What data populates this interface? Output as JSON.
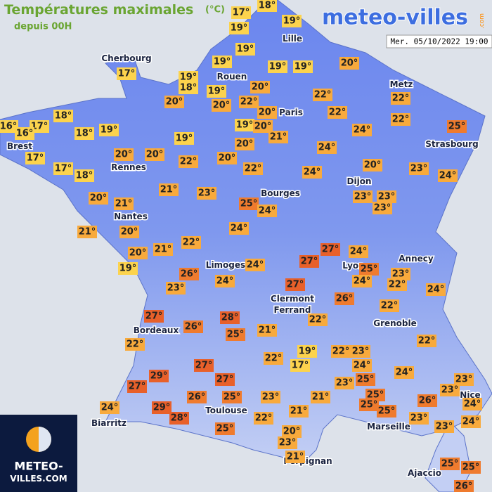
{
  "header": {
    "title": "Températures maximales",
    "unit": "(°C)",
    "subtitle": "depuis 00H",
    "brand": "meteo-villes",
    "brand_suffix": ".com",
    "timestamp": "Mer. 05/10/2022 19:00"
  },
  "badge": {
    "line1": "METEO-",
    "line2": "VILLES.COM"
  },
  "cities": [
    "Cherbourg",
    "Lille",
    "Rouen",
    "Paris",
    "Metz",
    "Strasbourg",
    "Brest",
    "Rennes",
    "Nantes",
    "Dijon",
    "Bourges",
    "Annecy",
    "Limoges",
    "Lyon",
    "Clermont",
    "Ferrand",
    "Grenoble",
    "Bordeaux",
    "Toulouse",
    "Biarritz",
    "Marseille",
    "Nice",
    "Perpignan",
    "Ajaccio"
  ],
  "readings": [
    {
      "text": "18°",
      "color": "#fcd34d"
    },
    {
      "text": "17°",
      "color": "#fcd34d"
    },
    {
      "text": "19°",
      "color": "#fcd34d"
    },
    {
      "text": "19°",
      "color": "#fcd34d"
    },
    {
      "text": "19°",
      "color": "#fcd34d"
    },
    {
      "text": "17°",
      "color": "#fcd34d"
    },
    {
      "text": "19°",
      "color": "#fcd34d"
    },
    {
      "text": "19°",
      "color": "#fcd34d"
    },
    {
      "text": "19°",
      "color": "#fcd34d"
    },
    {
      "text": "20°",
      "color": "#f8aa3c"
    },
    {
      "text": "19°",
      "color": "#fcd34d"
    },
    {
      "text": "18°",
      "color": "#fcd34d"
    },
    {
      "text": "19°",
      "color": "#fcd34d"
    },
    {
      "text": "20°",
      "color": "#f8aa3c"
    },
    {
      "text": "22°",
      "color": "#f8aa3c"
    },
    {
      "text": "22°",
      "color": "#f8aa3c"
    },
    {
      "text": "20°",
      "color": "#f8aa3c"
    },
    {
      "text": "20°",
      "color": "#f8aa3c"
    },
    {
      "text": "22°",
      "color": "#f8aa3c"
    },
    {
      "text": "20°",
      "color": "#f8aa3c"
    },
    {
      "text": "22°",
      "color": "#f8aa3c"
    },
    {
      "text": "22°",
      "color": "#f8aa3c"
    },
    {
      "text": "18°",
      "color": "#fcd34d"
    },
    {
      "text": "16°",
      "color": "#fcd34d"
    },
    {
      "text": "17°",
      "color": "#fcd34d"
    },
    {
      "text": "16°",
      "color": "#fcd34d"
    },
    {
      "text": "18°",
      "color": "#fcd34d"
    },
    {
      "text": "19°",
      "color": "#fcd34d"
    },
    {
      "text": "19°",
      "color": "#fcd34d"
    },
    {
      "text": "20°",
      "color": "#f8aa3c"
    },
    {
      "text": "24°",
      "color": "#f8aa3c"
    },
    {
      "text": "25°",
      "color": "#ef7b2e"
    },
    {
      "text": "21°",
      "color": "#f8aa3c"
    },
    {
      "text": "19°",
      "color": "#fcd34d"
    },
    {
      "text": "20°",
      "color": "#f8aa3c"
    },
    {
      "text": "24°",
      "color": "#f8aa3c"
    },
    {
      "text": "17°",
      "color": "#fcd34d"
    },
    {
      "text": "20°",
      "color": "#f8aa3c"
    },
    {
      "text": "20°",
      "color": "#f8aa3c"
    },
    {
      "text": "22°",
      "color": "#f8aa3c"
    },
    {
      "text": "20°",
      "color": "#f8aa3c"
    },
    {
      "text": "17°",
      "color": "#fcd34d"
    },
    {
      "text": "18°",
      "color": "#fcd34d"
    },
    {
      "text": "22°",
      "color": "#f8aa3c"
    },
    {
      "text": "24°",
      "color": "#f8aa3c"
    },
    {
      "text": "20°",
      "color": "#f8aa3c"
    },
    {
      "text": "23°",
      "color": "#f8aa3c"
    },
    {
      "text": "24°",
      "color": "#f8aa3c"
    },
    {
      "text": "20°",
      "color": "#f8aa3c"
    },
    {
      "text": "21°",
      "color": "#f8aa3c"
    },
    {
      "text": "23°",
      "color": "#f8aa3c"
    },
    {
      "text": "21°",
      "color": "#f8aa3c"
    },
    {
      "text": "25°",
      "color": "#ef7b2e"
    },
    {
      "text": "24°",
      "color": "#f8aa3c"
    },
    {
      "text": "23°",
      "color": "#f8aa3c"
    },
    {
      "text": "23°",
      "color": "#f8aa3c"
    },
    {
      "text": "23°",
      "color": "#f8aa3c"
    },
    {
      "text": "21°",
      "color": "#f8aa3c"
    },
    {
      "text": "20°",
      "color": "#f8aa3c"
    },
    {
      "text": "24°",
      "color": "#f8aa3c"
    },
    {
      "text": "22°",
      "color": "#f8aa3c"
    },
    {
      "text": "21°",
      "color": "#f8aa3c"
    },
    {
      "text": "20°",
      "color": "#f8aa3c"
    },
    {
      "text": "27°",
      "color": "#e8602a"
    },
    {
      "text": "24°",
      "color": "#f8aa3c"
    },
    {
      "text": "19°",
      "color": "#fcd34d"
    },
    {
      "text": "26°",
      "color": "#ef7b2e"
    },
    {
      "text": "24°",
      "color": "#f8aa3c"
    },
    {
      "text": "27°",
      "color": "#e8602a"
    },
    {
      "text": "25°",
      "color": "#ef7b2e"
    },
    {
      "text": "23°",
      "color": "#f8aa3c"
    },
    {
      "text": "23°",
      "color": "#f8aa3c"
    },
    {
      "text": "24°",
      "color": "#f8aa3c"
    },
    {
      "text": "24°",
      "color": "#f8aa3c"
    },
    {
      "text": "22°",
      "color": "#f8aa3c"
    },
    {
      "text": "24°",
      "color": "#f8aa3c"
    },
    {
      "text": "27°",
      "color": "#e8602a"
    },
    {
      "text": "26°",
      "color": "#ef7b2e"
    },
    {
      "text": "22°",
      "color": "#f8aa3c"
    },
    {
      "text": "27°",
      "color": "#e8602a"
    },
    {
      "text": "28°",
      "color": "#e8602a"
    },
    {
      "text": "26°",
      "color": "#ef7b2e"
    },
    {
      "text": "22°",
      "color": "#f8aa3c"
    },
    {
      "text": "25°",
      "color": "#ef7b2e"
    },
    {
      "text": "21°",
      "color": "#f8aa3c"
    },
    {
      "text": "22°",
      "color": "#f8aa3c"
    },
    {
      "text": "22°",
      "color": "#f8aa3c"
    },
    {
      "text": "19°",
      "color": "#fcd34d"
    },
    {
      "text": "22°",
      "color": "#f8aa3c"
    },
    {
      "text": "23°",
      "color": "#f8aa3c"
    },
    {
      "text": "22°",
      "color": "#f8aa3c"
    },
    {
      "text": "17°",
      "color": "#fcd34d"
    },
    {
      "text": "24°",
      "color": "#f8aa3c"
    },
    {
      "text": "27°",
      "color": "#e8602a"
    },
    {
      "text": "24°",
      "color": "#f8aa3c"
    },
    {
      "text": "29°",
      "color": "#e8602a"
    },
    {
      "text": "27°",
      "color": "#e8602a"
    },
    {
      "text": "23°",
      "color": "#f8aa3c"
    },
    {
      "text": "25°",
      "color": "#ef7b2e"
    },
    {
      "text": "23°",
      "color": "#f8aa3c"
    },
    {
      "text": "27°",
      "color": "#e8602a"
    },
    {
      "text": "23°",
      "color": "#f8aa3c"
    },
    {
      "text": "25°",
      "color": "#ef7b2e"
    },
    {
      "text": "21°",
      "color": "#f8aa3c"
    },
    {
      "text": "26°",
      "color": "#ef7b2e"
    },
    {
      "text": "25°",
      "color": "#ef7b2e"
    },
    {
      "text": "23°",
      "color": "#f8aa3c"
    },
    {
      "text": "26°",
      "color": "#ef7b2e"
    },
    {
      "text": "24°",
      "color": "#f8aa3c"
    },
    {
      "text": "25°",
      "color": "#ef7b2e"
    },
    {
      "text": "25°",
      "color": "#ef7b2e"
    },
    {
      "text": "29°",
      "color": "#e8602a"
    },
    {
      "text": "21°",
      "color": "#f8aa3c"
    },
    {
      "text": "24°",
      "color": "#f8aa3c"
    },
    {
      "text": "23°",
      "color": "#f8aa3c"
    },
    {
      "text": "28°",
      "color": "#e8602a"
    },
    {
      "text": "22°",
      "color": "#f8aa3c"
    },
    {
      "text": "24°",
      "color": "#f8aa3c"
    },
    {
      "text": "23°",
      "color": "#f8aa3c"
    },
    {
      "text": "25°",
      "color": "#ef7b2e"
    },
    {
      "text": "20°",
      "color": "#f8aa3c"
    },
    {
      "text": "23°",
      "color": "#f8aa3c"
    },
    {
      "text": "21°",
      "color": "#f8aa3c"
    },
    {
      "text": "25°",
      "color": "#ef7b2e"
    },
    {
      "text": "25°",
      "color": "#ef7b2e"
    },
    {
      "text": "26°",
      "color": "#ef7b2e"
    }
  ]
}
